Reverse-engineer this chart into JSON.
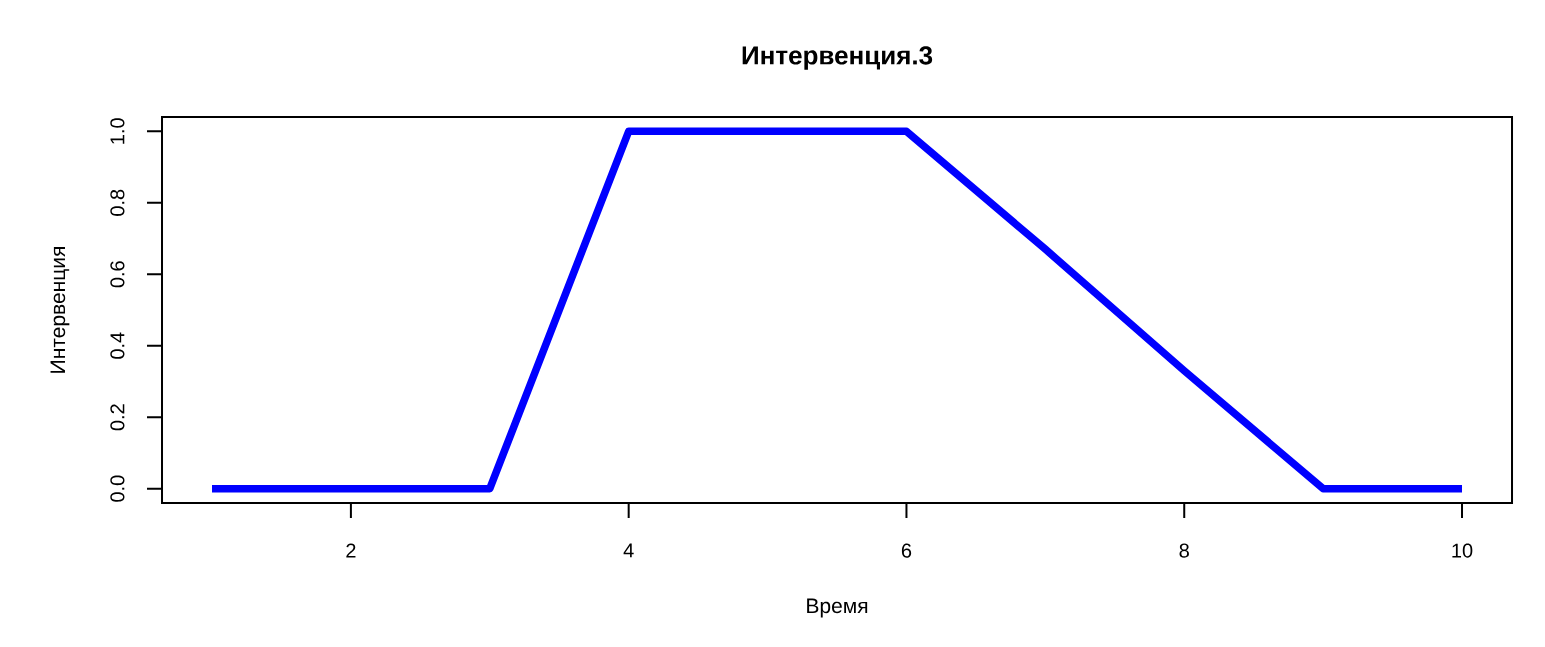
{
  "chart_data": {
    "type": "line",
    "title": "Интервенция.3",
    "xlabel": "Время",
    "ylabel": "Интервенция",
    "x": [
      1,
      2,
      3,
      4,
      5,
      6,
      7,
      8,
      9,
      10
    ],
    "values": [
      0,
      0,
      0,
      1,
      1,
      1,
      0.67,
      0.33,
      0,
      0
    ],
    "color": "#0000ff",
    "line_style": "solid",
    "xlim": [
      0.64,
      10.36
    ],
    "ylim": [
      -0.04,
      1.04
    ],
    "xticks": [
      2,
      4,
      6,
      8,
      10
    ],
    "yticks": [
      {
        "value": 0,
        "label": "0.0"
      },
      0.2,
      0.4,
      0.6,
      0.8,
      {
        "value": 1,
        "label": "1.0"
      }
    ]
  }
}
